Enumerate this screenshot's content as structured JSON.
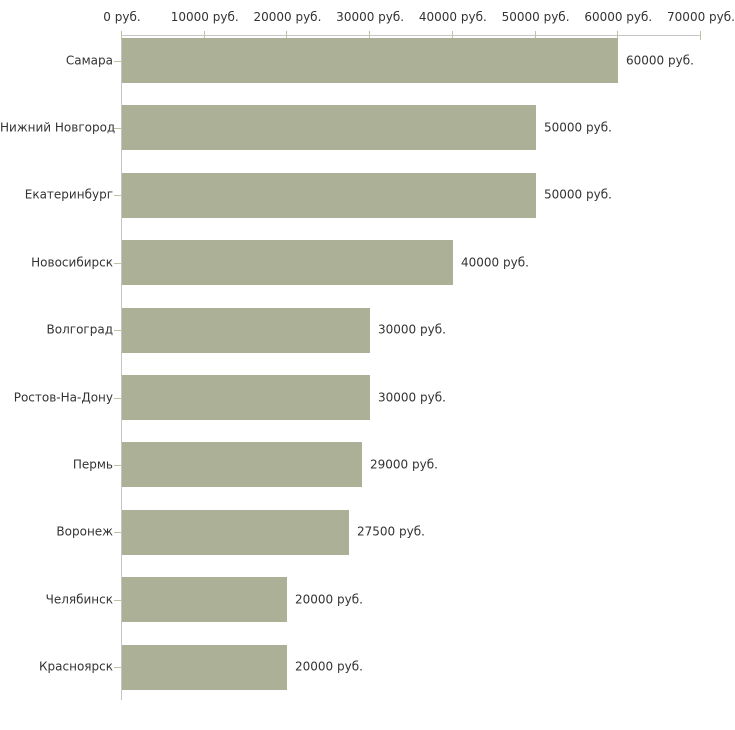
{
  "chart_data": {
    "type": "bar",
    "orientation": "horizontal",
    "title": "",
    "xlabel": "",
    "ylabel": "",
    "categories": [
      "Самара",
      "Нижний Новгород",
      "Екатеринбург",
      "Новосибирск",
      "Волгоград",
      "Ростов-На-Дону",
      "Пермь",
      "Воронеж",
      "Челябинск",
      "Красноярск"
    ],
    "values": [
      60000,
      50000,
      50000,
      40000,
      30000,
      30000,
      29000,
      27500,
      20000,
      20000
    ],
    "value_labels": [
      "60000 руб.",
      "50000 руб.",
      "50000 руб.",
      "40000 руб.",
      "30000 руб.",
      "30000 руб.",
      "29000 руб.",
      "27500 руб.",
      "20000 руб.",
      "20000 руб."
    ],
    "x_axis": {
      "position": "top",
      "min": 0,
      "max": 70000,
      "ticks": [
        0,
        10000,
        20000,
        30000,
        40000,
        50000,
        60000,
        70000
      ],
      "tick_labels": [
        "0 руб.",
        "10000 руб.",
        "20000 руб.",
        "30000 руб.",
        "40000 руб.",
        "50000 руб.",
        "60000 руб.",
        "70000 руб."
      ]
    },
    "grid": false,
    "legend": false,
    "colors": {
      "bar": "#abb096",
      "axis_line": "#c5c5c5",
      "tick_mark": "#c2c2a0",
      "text": "#333333",
      "background": "#ffffff"
    }
  }
}
